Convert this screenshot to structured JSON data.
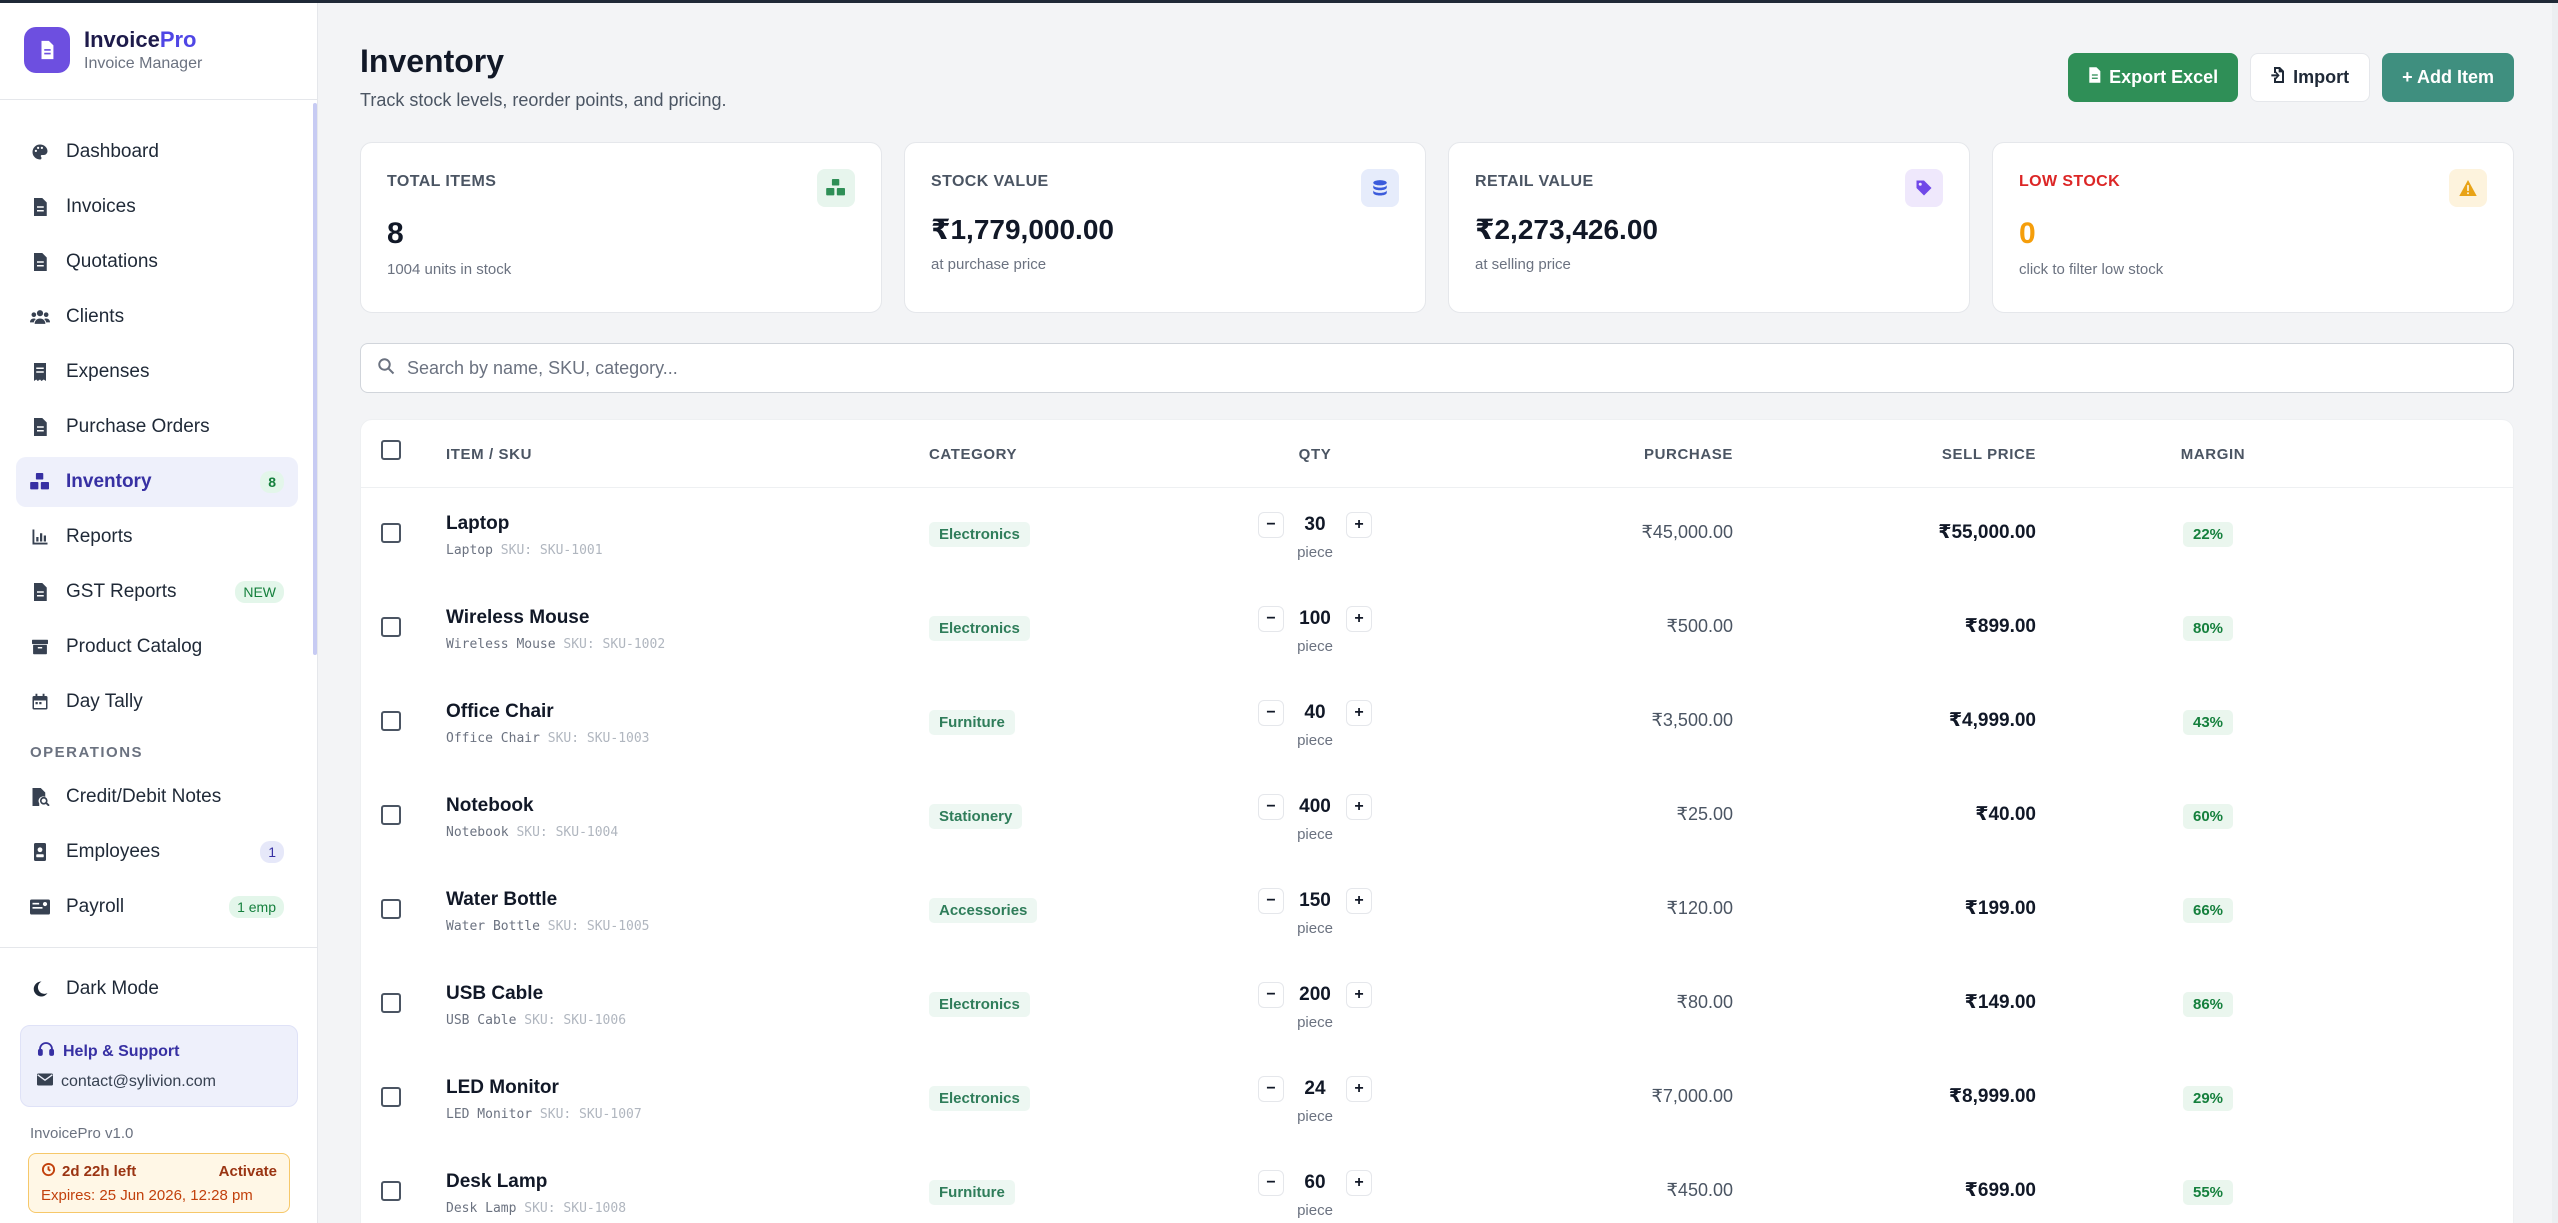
{
  "brand": {
    "name_main": "Invoice",
    "name_accent": "Pro",
    "subtitle": "Invoice Manager",
    "logo_icon": "document-icon"
  },
  "sidebar": {
    "items": [
      {
        "label": "Dashboard",
        "icon": "palette-icon",
        "active": false
      },
      {
        "label": "Invoices",
        "icon": "file-icon",
        "active": false
      },
      {
        "label": "Quotations",
        "icon": "file-icon",
        "active": false
      },
      {
        "label": "Clients",
        "icon": "users-icon",
        "active": false
      },
      {
        "label": "Expenses",
        "icon": "receipt-icon",
        "active": false
      },
      {
        "label": "Purchase Orders",
        "icon": "file-icon",
        "active": false
      },
      {
        "label": "Inventory",
        "icon": "boxes-icon",
        "active": true,
        "badge": "8"
      },
      {
        "label": "Reports",
        "icon": "bar-chart-icon",
        "active": false
      },
      {
        "label": "GST Reports",
        "icon": "file-icon",
        "active": false,
        "badge": "NEW"
      },
      {
        "label": "Product Catalog",
        "icon": "box-icon",
        "active": false
      },
      {
        "label": "Day Tally",
        "icon": "calendar-icon",
        "active": false
      }
    ],
    "section_operations": "OPERATIONS",
    "operations": [
      {
        "label": "Credit/Debit Notes",
        "icon": "file-search-icon"
      },
      {
        "label": "Employees",
        "icon": "id-badge-icon",
        "badge": "1"
      },
      {
        "label": "Payroll",
        "icon": "money-icon",
        "badge": "1 emp"
      }
    ],
    "dark_mode": "Dark Mode",
    "help": {
      "title": "Help & Support",
      "email": "contact@sylivion.com"
    },
    "version": "InvoicePro v1.0",
    "trial": {
      "left": "2d 22h left",
      "activate": "Activate",
      "expires": "Expires: 25 Jun 2026, 12:28 pm"
    }
  },
  "page": {
    "title": "Inventory",
    "subtitle": "Track stock levels, reorder points, and pricing."
  },
  "actions": {
    "export": "Export Excel",
    "import": "Import",
    "add": "+ Add Item"
  },
  "stats": [
    {
      "label": "TOTAL ITEMS",
      "value": "8",
      "note": "1004 units in stock",
      "icon": "boxes-icon"
    },
    {
      "label": "STOCK VALUE",
      "value": "₹1,779,000.00",
      "note": "at purchase price",
      "icon": "coins-icon"
    },
    {
      "label": "RETAIL VALUE",
      "value": "₹2,273,426.00",
      "note": "at selling price",
      "icon": "tag-icon"
    },
    {
      "label": "LOW STOCK",
      "value": "0",
      "note": "click to filter low stock",
      "icon": "warning-icon"
    }
  ],
  "search": {
    "placeholder": "Search by name, SKU, category..."
  },
  "table": {
    "headers": {
      "item": "ITEM / SKU",
      "category": "CATEGORY",
      "qty": "QTY",
      "purchase": "PURCHASE",
      "sell": "SELL PRICE",
      "margin": "MARGIN"
    },
    "rows": [
      {
        "name": "Laptop",
        "sub": "Laptop",
        "sku": "SKU: SKU-1001",
        "category": "Electronics",
        "qty": "30",
        "unit": "piece",
        "purchase": "₹45,000.00",
        "sell": "₹55,000.00",
        "margin": "22%"
      },
      {
        "name": "Wireless Mouse",
        "sub": "Wireless Mouse",
        "sku": "SKU: SKU-1002",
        "category": "Electronics",
        "qty": "100",
        "unit": "piece",
        "purchase": "₹500.00",
        "sell": "₹899.00",
        "margin": "80%"
      },
      {
        "name": "Office Chair",
        "sub": "Office Chair",
        "sku": "SKU: SKU-1003",
        "category": "Furniture",
        "qty": "40",
        "unit": "piece",
        "purchase": "₹3,500.00",
        "sell": "₹4,999.00",
        "margin": "43%"
      },
      {
        "name": "Notebook",
        "sub": "Notebook",
        "sku": "SKU: SKU-1004",
        "category": "Stationery",
        "qty": "400",
        "unit": "piece",
        "purchase": "₹25.00",
        "sell": "₹40.00",
        "margin": "60%"
      },
      {
        "name": "Water Bottle",
        "sub": "Water Bottle",
        "sku": "SKU: SKU-1005",
        "category": "Accessories",
        "qty": "150",
        "unit": "piece",
        "purchase": "₹120.00",
        "sell": "₹199.00",
        "margin": "66%"
      },
      {
        "name": "USB Cable",
        "sub": "USB Cable",
        "sku": "SKU: SKU-1006",
        "category": "Electronics",
        "qty": "200",
        "unit": "piece",
        "purchase": "₹80.00",
        "sell": "₹149.00",
        "margin": "86%"
      },
      {
        "name": "LED Monitor",
        "sub": "LED Monitor",
        "sku": "SKU: SKU-1007",
        "category": "Electronics",
        "qty": "24",
        "unit": "piece",
        "purchase": "₹7,000.00",
        "sell": "₹8,999.00",
        "margin": "29%"
      },
      {
        "name": "Desk Lamp",
        "sub": "Desk Lamp",
        "sku": "SKU: SKU-1008",
        "category": "Furniture",
        "qty": "60",
        "unit": "piece",
        "purchase": "₹450.00",
        "sell": "₹699.00",
        "margin": "55%"
      }
    ]
  },
  "colors": {
    "brand": "#6d4fe0",
    "accent": "#3730a3",
    "green": "#2f8f57",
    "teal": "#3f8f7f",
    "warning": "#f59e0b",
    "danger": "#dc2626"
  }
}
